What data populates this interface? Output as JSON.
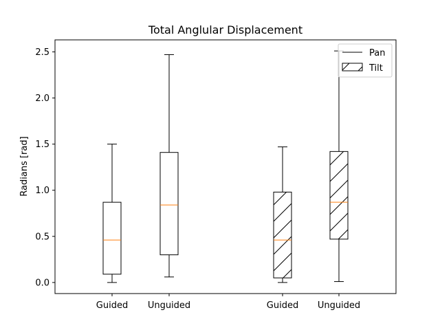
{
  "chart_data": {
    "type": "box",
    "title": "Total Anglular Displacement",
    "xlabel": "",
    "ylabel": "Radians [rad]",
    "ylim": [
      -0.12,
      2.63
    ],
    "yticks": [
      0.0,
      0.5,
      1.0,
      1.5,
      2.0,
      2.5
    ],
    "ytick_labels": [
      "0.0",
      "0.5",
      "1.0",
      "1.5",
      "2.0",
      "2.5"
    ],
    "grid": false,
    "legend": {
      "placement": "top-right",
      "entries": [
        {
          "label": "Pan",
          "style": "line"
        },
        {
          "label": "Tilt",
          "style": "hatched-box"
        }
      ]
    },
    "median_color": "#ff7f0e",
    "boxes": [
      {
        "label": "Guided",
        "series": "Pan",
        "whisker_low": 0.0,
        "q1": 0.09,
        "median": 0.46,
        "q3": 0.87,
        "whisker_high": 1.5
      },
      {
        "label": "Unguided",
        "series": "Pan",
        "whisker_low": 0.06,
        "q1": 0.3,
        "median": 0.84,
        "q3": 1.41,
        "whisker_high": 2.47
      },
      {
        "label": "Guided",
        "series": "Tilt",
        "whisker_low": 0.0,
        "q1": 0.05,
        "median": 0.46,
        "q3": 0.98,
        "whisker_high": 1.47
      },
      {
        "label": "Unguided",
        "series": "Tilt",
        "whisker_low": 0.01,
        "q1": 0.47,
        "median": 0.87,
        "q3": 1.42,
        "whisker_high": 2.51
      }
    ]
  }
}
